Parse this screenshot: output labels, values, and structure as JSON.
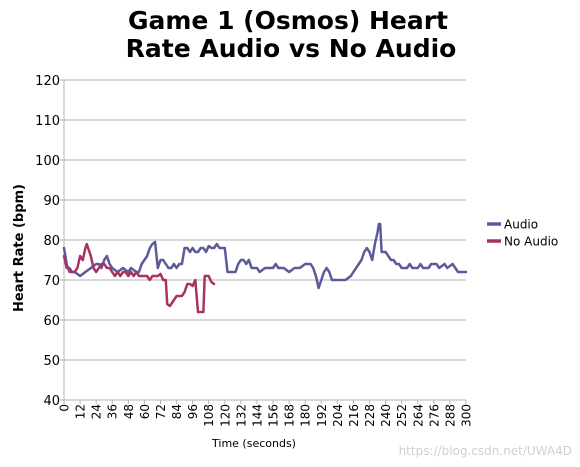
{
  "chart_data": {
    "type": "line",
    "title": [
      "Game 1 (Osmos) Heart",
      "Rate Audio vs No Audio"
    ],
    "xlabel": "Time (seconds)",
    "ylabel": "Heart Rate (bpm)",
    "xlim": [
      0,
      300
    ],
    "ylim": [
      40,
      120
    ],
    "xticks": [
      0,
      12,
      24,
      36,
      48,
      60,
      72,
      84,
      96,
      108,
      120,
      132,
      144,
      156,
      168,
      180,
      192,
      204,
      216,
      228,
      240,
      252,
      264,
      276,
      288,
      300
    ],
    "yticks": [
      40,
      50,
      60,
      70,
      80,
      90,
      100,
      110,
      120
    ],
    "grid": true,
    "legend_position": "right",
    "series": [
      {
        "name": "Audio",
        "color": "#5b5b9b",
        "points": [
          [
            0,
            78
          ],
          [
            2,
            74
          ],
          [
            4,
            72
          ],
          [
            8,
            72
          ],
          [
            12,
            71
          ],
          [
            16,
            72
          ],
          [
            20,
            73
          ],
          [
            24,
            74
          ],
          [
            26,
            74
          ],
          [
            28,
            73
          ],
          [
            30,
            75
          ],
          [
            32,
            76
          ],
          [
            34,
            74
          ],
          [
            36,
            73
          ],
          [
            40,
            72
          ],
          [
            44,
            73
          ],
          [
            48,
            72
          ],
          [
            50,
            73
          ],
          [
            54,
            72
          ],
          [
            56,
            72
          ],
          [
            58,
            74
          ],
          [
            60,
            75
          ],
          [
            62,
            76
          ],
          [
            64,
            78
          ],
          [
            66,
            79
          ],
          [
            68,
            79.5
          ],
          [
            70,
            73
          ],
          [
            72,
            75
          ],
          [
            74,
            75
          ],
          [
            76,
            74
          ],
          [
            78,
            73
          ],
          [
            80,
            73
          ],
          [
            82,
            74
          ],
          [
            84,
            73
          ],
          [
            86,
            74
          ],
          [
            88,
            74
          ],
          [
            90,
            78
          ],
          [
            92,
            78
          ],
          [
            94,
            77
          ],
          [
            96,
            78
          ],
          [
            98,
            77
          ],
          [
            100,
            77
          ],
          [
            102,
            78
          ],
          [
            104,
            78
          ],
          [
            106,
            77
          ],
          [
            108,
            78.5
          ],
          [
            110,
            78
          ],
          [
            112,
            78
          ],
          [
            114,
            79
          ],
          [
            116,
            78
          ],
          [
            118,
            78
          ],
          [
            120,
            78
          ],
          [
            122,
            72
          ],
          [
            126,
            72
          ],
          [
            128,
            72
          ],
          [
            130,
            74
          ],
          [
            132,
            75
          ],
          [
            134,
            75
          ],
          [
            136,
            74
          ],
          [
            138,
            75
          ],
          [
            140,
            73
          ],
          [
            144,
            73
          ],
          [
            146,
            72
          ],
          [
            150,
            73
          ],
          [
            156,
            73
          ],
          [
            158,
            74
          ],
          [
            160,
            73
          ],
          [
            164,
            73
          ],
          [
            168,
            72
          ],
          [
            172,
            73
          ],
          [
            176,
            73
          ],
          [
            180,
            74
          ],
          [
            184,
            74
          ],
          [
            186,
            73
          ],
          [
            188,
            71
          ],
          [
            190,
            68
          ],
          [
            192,
            70
          ],
          [
            194,
            72
          ],
          [
            196,
            73
          ],
          [
            198,
            72
          ],
          [
            200,
            70
          ],
          [
            204,
            70
          ],
          [
            210,
            70
          ],
          [
            214,
            71
          ],
          [
            216,
            72
          ],
          [
            220,
            74
          ],
          [
            222,
            75
          ],
          [
            224,
            77
          ],
          [
            226,
            78
          ],
          [
            228,
            77
          ],
          [
            230,
            75
          ],
          [
            232,
            79
          ],
          [
            234,
            82
          ],
          [
            235,
            84
          ],
          [
            236,
            84
          ],
          [
            237,
            77
          ],
          [
            240,
            77
          ],
          [
            242,
            76
          ],
          [
            244,
            75
          ],
          [
            246,
            75
          ],
          [
            248,
            74
          ],
          [
            250,
            74
          ],
          [
            252,
            73
          ],
          [
            256,
            73
          ],
          [
            258,
            74
          ],
          [
            260,
            73
          ],
          [
            264,
            73
          ],
          [
            266,
            74
          ],
          [
            268,
            73
          ],
          [
            272,
            73
          ],
          [
            274,
            74
          ],
          [
            278,
            74
          ],
          [
            280,
            73
          ],
          [
            284,
            74
          ],
          [
            286,
            73
          ],
          [
            290,
            74
          ],
          [
            292,
            73
          ],
          [
            294,
            72
          ],
          [
            296,
            72
          ],
          [
            300,
            72
          ]
        ]
      },
      {
        "name": "No Audio",
        "color": "#a83262",
        "points": [
          [
            0,
            76
          ],
          [
            2,
            73
          ],
          [
            4,
            73
          ],
          [
            6,
            72
          ],
          [
            8,
            72
          ],
          [
            10,
            73
          ],
          [
            12,
            76
          ],
          [
            14,
            75
          ],
          [
            16,
            78
          ],
          [
            17,
            79
          ],
          [
            18,
            78
          ],
          [
            20,
            76
          ],
          [
            22,
            73
          ],
          [
            24,
            72
          ],
          [
            26,
            73
          ],
          [
            28,
            74
          ],
          [
            30,
            74
          ],
          [
            32,
            73
          ],
          [
            34,
            73
          ],
          [
            36,
            72
          ],
          [
            38,
            71
          ],
          [
            40,
            72
          ],
          [
            42,
            71
          ],
          [
            44,
            72
          ],
          [
            46,
            72
          ],
          [
            48,
            71
          ],
          [
            50,
            72
          ],
          [
            52,
            71
          ],
          [
            54,
            72
          ],
          [
            56,
            71
          ],
          [
            58,
            71
          ],
          [
            60,
            71
          ],
          [
            62,
            71
          ],
          [
            64,
            70
          ],
          [
            66,
            71
          ],
          [
            68,
            71
          ],
          [
            70,
            71
          ],
          [
            72,
            71.5
          ],
          [
            74,
            70
          ],
          [
            76,
            70
          ],
          [
            77,
            64
          ],
          [
            79,
            63.5
          ],
          [
            82,
            65
          ],
          [
            84,
            66
          ],
          [
            86,
            66
          ],
          [
            88,
            66
          ],
          [
            90,
            67
          ],
          [
            92,
            69
          ],
          [
            94,
            69
          ],
          [
            96,
            68.5
          ],
          [
            98,
            70
          ],
          [
            100,
            62
          ],
          [
            102,
            62
          ],
          [
            104,
            62
          ],
          [
            105,
            71
          ],
          [
            107,
            71
          ],
          [
            108,
            71
          ],
          [
            110,
            69.5
          ],
          [
            112,
            69
          ]
        ]
      }
    ]
  },
  "watermark": "https://blog.csdn.net/UWA4D"
}
